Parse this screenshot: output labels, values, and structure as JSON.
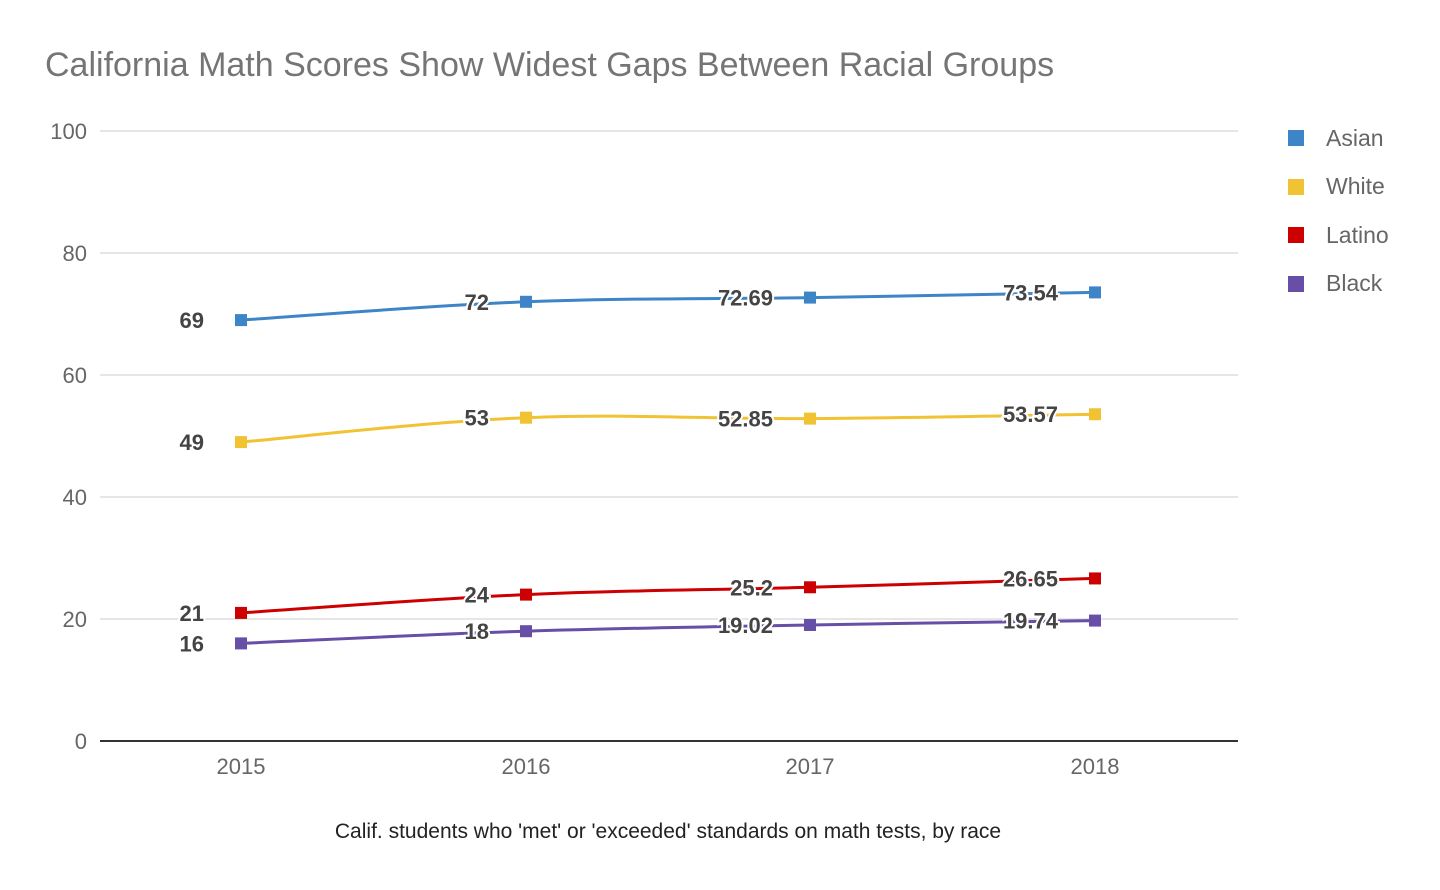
{
  "chart_data": {
    "type": "line",
    "title": "California Math Scores Show Widest Gaps Between Racial Groups",
    "xlabel": "Calif. students who 'met' or 'exceeded' standards on math tests, by race",
    "ylabel": "",
    "categories": [
      "2015",
      "2016",
      "2017",
      "2018"
    ],
    "ylim": [
      0,
      100
    ],
    "yticks": [
      "0",
      "20",
      "40",
      "60",
      "80",
      "100"
    ],
    "grid": true,
    "legend_position": "right",
    "series": [
      {
        "name": "Asian",
        "color": "#3d85c6",
        "values": [
          69,
          72,
          72.69,
          73.54
        ],
        "labels": [
          "69",
          "72",
          "72.69",
          "73.54"
        ]
      },
      {
        "name": "White",
        "color": "#f1c232",
        "values": [
          49,
          53,
          52.85,
          53.57
        ],
        "labels": [
          "49",
          "53",
          "52.85",
          "53.57"
        ]
      },
      {
        "name": "Latino",
        "color": "#cc0000",
        "values": [
          21,
          24,
          25.2,
          26.65
        ],
        "labels": [
          "21",
          "24",
          "25.2",
          "26.65"
        ]
      },
      {
        "name": "Black",
        "color": "#674ea7",
        "values": [
          16,
          18,
          19.02,
          19.74
        ],
        "labels": [
          "16",
          "18",
          "19.02",
          "19.74"
        ]
      }
    ]
  }
}
